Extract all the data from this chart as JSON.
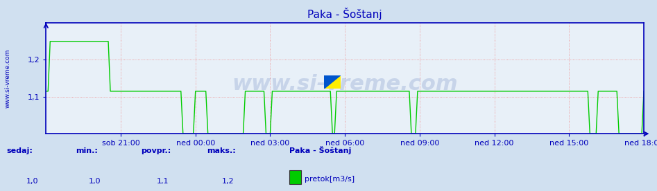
{
  "title": "Paka - Šoštanj",
  "bg_color": "#d0e0f0",
  "plot_bg_color": "#e8f0f8",
  "line_color": "#00cc00",
  "axis_color": "#0000bb",
  "grid_color": "#ee8888",
  "ylabel_text": "www.si-vreme.com",
  "watermark": "www.si-vreme.com",
  "ylim_min": 1.0,
  "ylim_max": 1.3,
  "yticks": [
    1.1,
    1.2
  ],
  "ytick_labels": [
    "1,1",
    "1,2"
  ],
  "xtick_positions": [
    180,
    360,
    540,
    720,
    900,
    1080,
    1260,
    1440
  ],
  "xtick_labels": [
    "sob 21:00",
    "ned 00:00",
    "ned 03:00",
    "ned 06:00",
    "ned 09:00",
    "ned 12:00",
    "ned 15:00",
    "ned 18:00"
  ],
  "xmin": 0,
  "xmax": 1440,
  "footer_labels": [
    "sedaj:",
    "min.:",
    "povpr.:",
    "maks.:"
  ],
  "footer_values": [
    "1,0",
    "1,0",
    "1,1",
    "1,2"
  ],
  "legend_station": "Paka - Šoštanj",
  "legend_unit": "pretok[m3/s]",
  "legend_color": "#00cc00",
  "title_color": "#0000bb",
  "footer_label_color": "#0000bb",
  "footer_value_color": "#0000bb",
  "font_size_title": 11,
  "font_size_ticks": 8,
  "font_size_footer": 8,
  "font_size_watermark": 22,
  "watermark_color": "#3355aa",
  "watermark_alpha": 0.18
}
